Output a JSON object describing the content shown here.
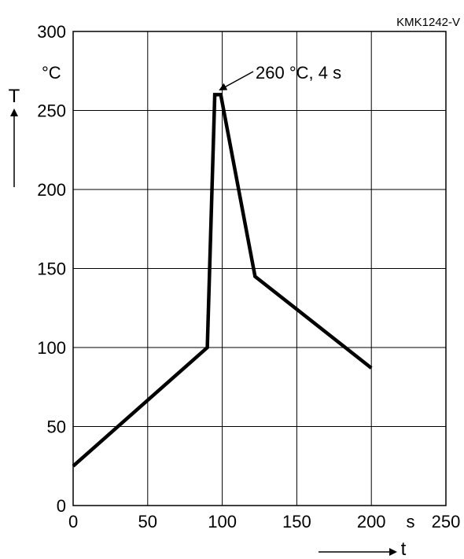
{
  "chart_data": {
    "type": "line",
    "code_label": "KMK1242-V",
    "x_axis": {
      "label": "t",
      "unit": "s",
      "range": [
        0,
        250
      ],
      "ticks": [
        0,
        50,
        100,
        150,
        200,
        250
      ]
    },
    "y_axis": {
      "label": "T",
      "unit": "°C",
      "range": [
        0,
        300
      ],
      "ticks": [
        0,
        50,
        100,
        150,
        200,
        250,
        300
      ]
    },
    "grid": true,
    "series": [
      {
        "x": [
          0,
          90,
          95,
          99,
          122,
          200
        ],
        "y": [
          25,
          100,
          260,
          260,
          145,
          87
        ]
      }
    ],
    "annotation": {
      "text": "260 °C, 4 s",
      "x": 97,
      "y": 260
    }
  }
}
